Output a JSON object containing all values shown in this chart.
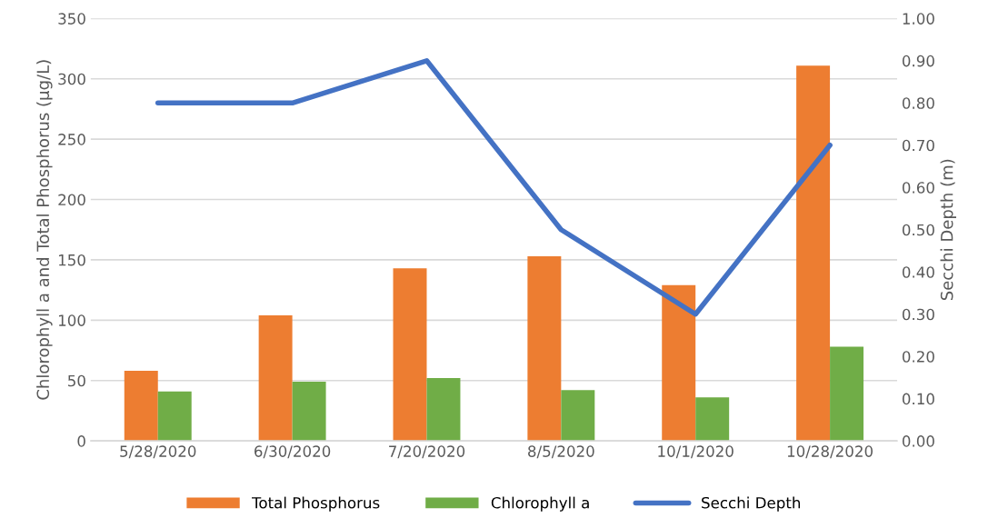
{
  "chart_data": {
    "type": "bar",
    "categories": [
      "5/28/2020",
      "6/30/2020",
      "7/20/2020",
      "8/5/2020",
      "10/1/2020",
      "10/28/2020"
    ],
    "ylabel": "Chlorophyll a and Total Phosphorus (µg/L)",
    "y2label": "Secchi Depth (m)",
    "ylim": [
      0,
      350
    ],
    "yticks": [
      0,
      50,
      100,
      150,
      200,
      250,
      300,
      350
    ],
    "y2lim": [
      0,
      1
    ],
    "y2ticks": [
      {
        "value": 0,
        "label": "0.00"
      },
      {
        "value": 0.1,
        "label": "0.10"
      },
      {
        "value": 0.2,
        "label": "0.20"
      },
      {
        "value": 0.3,
        "label": "0.30"
      },
      {
        "value": 0.4,
        "label": "0.40"
      },
      {
        "value": 0.5,
        "label": "0.50"
      },
      {
        "value": 0.6,
        "label": "0.60"
      },
      {
        "value": 0.7,
        "label": "0.70"
      },
      {
        "value": 0.8,
        "label": "0.80"
      },
      {
        "value": 0.9,
        "label": "0.90"
      },
      {
        "value": 1,
        "label": "1.00"
      }
    ],
    "grid": "y",
    "legend": "bottom",
    "series": [
      {
        "name": "Total Phosphorus",
        "color": "#ed7d31",
        "values": [
          58,
          104,
          143,
          153,
          129,
          311
        ]
      },
      {
        "name": "Chlorophyll a",
        "color": "#70ad47",
        "values": [
          41,
          49,
          52,
          42,
          36,
          78
        ]
      },
      {
        "name": "Secchi Depth",
        "color": "#4472c4",
        "type": "line",
        "axis": "y2",
        "values": [
          0.8,
          0.8,
          0.9,
          0.5,
          0.3,
          0.7
        ]
      }
    ]
  }
}
